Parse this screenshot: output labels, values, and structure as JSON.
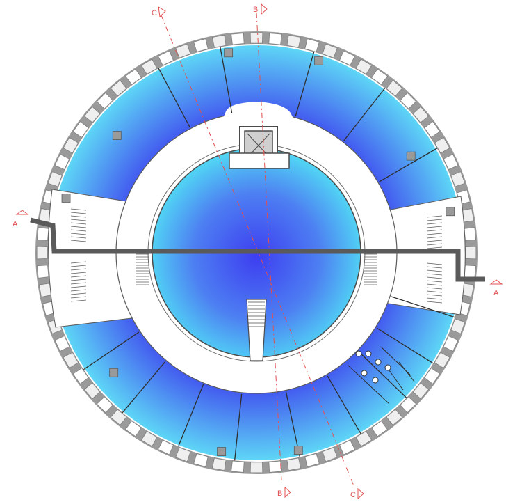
{
  "section_markers": {
    "a_left": "A",
    "a_right": "A",
    "b_top": "B",
    "b_bottom": "B",
    "c_top": "C",
    "c_bottom": "C"
  },
  "colors": {
    "wall": "#9a9a9a",
    "wall_dark": "#7f7f7f",
    "section_line": "#e05050",
    "cut_line": "#5a5a5a",
    "room_light": "#4fe6f5",
    "room_dark": "#3b3ff0",
    "corridor": "#ffffff"
  }
}
